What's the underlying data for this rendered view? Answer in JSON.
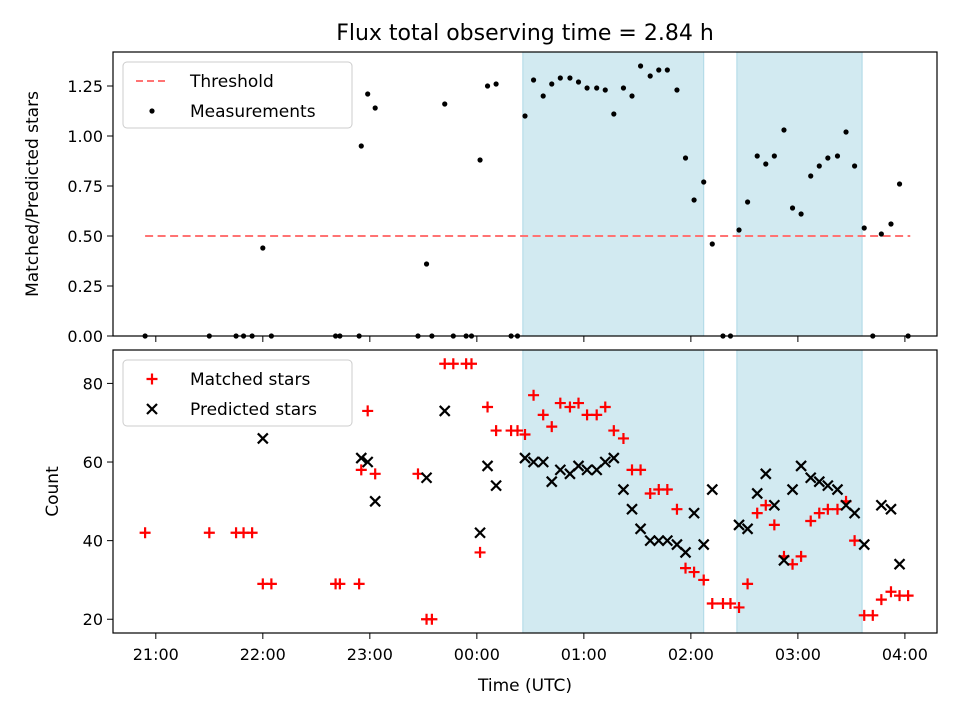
{
  "chart_data": {
    "title": "Flux total observing time = 2.84 h",
    "shared_x": {
      "label": "Time (UTC)",
      "unit": "hours since midnight UTC (previous day negative)",
      "range": [
        -3.4,
        4.3
      ],
      "ticks": [
        -3,
        -2,
        -1,
        0,
        1,
        2,
        3,
        4
      ],
      "tick_labels": [
        "21:00",
        "22:00",
        "23:00",
        "00:00",
        "01:00",
        "02:00",
        "03:00",
        "04:00"
      ]
    },
    "shaded_intervals": [
      [
        0.43,
        2.12
      ],
      [
        2.43,
        3.6
      ]
    ],
    "shade_color": "#add8e6",
    "panels": [
      {
        "type": "scatter",
        "ylabel": "Matched/Predicted stars",
        "ylim": [
          0,
          1.42
        ],
        "yticks": [
          0,
          0.25,
          0.5,
          0.75,
          1.0,
          1.25
        ],
        "ytick_labels": [
          "0.00",
          "0.25",
          "0.50",
          "0.75",
          "1.00",
          "1.25"
        ],
        "legend": {
          "position": "upper-left",
          "entries": [
            {
              "label": "Threshold",
              "marker": "dashed-line",
              "color": "#ff7373"
            },
            {
              "label": "Measurements",
              "marker": "dot",
              "color": "#000000"
            }
          ]
        },
        "threshold": {
          "name": "Threshold",
          "y": 0.5,
          "x_range": [
            -3.1,
            4.05
          ],
          "color": "#ff7373"
        },
        "series": [
          {
            "name": "Measurements",
            "marker": "dot",
            "color": "#000000",
            "points": [
              [
                -3.1,
                0.0
              ],
              [
                -2.5,
                0.0
              ],
              [
                -2.25,
                0.0
              ],
              [
                -2.18,
                0.0
              ],
              [
                -2.1,
                0.0
              ],
              [
                -2.0,
                0.44
              ],
              [
                -1.92,
                0.0
              ],
              [
                -1.32,
                0.0
              ],
              [
                -1.28,
                0.0
              ],
              [
                -1.1,
                0.0
              ],
              [
                -1.08,
                0.95
              ],
              [
                -1.02,
                1.21
              ],
              [
                -0.95,
                1.14
              ],
              [
                -0.55,
                0.0
              ],
              [
                -0.47,
                0.36
              ],
              [
                -0.42,
                0.0
              ],
              [
                -0.3,
                1.16
              ],
              [
                -0.22,
                0.0
              ],
              [
                -0.1,
                0.0
              ],
              [
                -0.05,
                0.0
              ],
              [
                0.03,
                0.88
              ],
              [
                0.1,
                1.25
              ],
              [
                0.18,
                1.26
              ],
              [
                0.32,
                0.0
              ],
              [
                0.38,
                0.0
              ],
              [
                0.45,
                1.1
              ],
              [
                0.53,
                1.28
              ],
              [
                0.62,
                1.2
              ],
              [
                0.7,
                1.26
              ],
              [
                0.78,
                1.29
              ],
              [
                0.87,
                1.29
              ],
              [
                0.95,
                1.27
              ],
              [
                1.03,
                1.24
              ],
              [
                1.12,
                1.24
              ],
              [
                1.2,
                1.23
              ],
              [
                1.28,
                1.11
              ],
              [
                1.37,
                1.24
              ],
              [
                1.45,
                1.2
              ],
              [
                1.53,
                1.35
              ],
              [
                1.62,
                1.3
              ],
              [
                1.7,
                1.33
              ],
              [
                1.78,
                1.33
              ],
              [
                1.87,
                1.23
              ],
              [
                1.95,
                0.89
              ],
              [
                2.03,
                0.68
              ],
              [
                2.12,
                0.77
              ],
              [
                2.2,
                0.46
              ],
              [
                2.3,
                0.0
              ],
              [
                2.37,
                0.0
              ],
              [
                2.45,
                0.53
              ],
              [
                2.53,
                0.67
              ],
              [
                2.62,
                0.9
              ],
              [
                2.7,
                0.86
              ],
              [
                2.78,
                0.9
              ],
              [
                2.87,
                1.03
              ],
              [
                2.95,
                0.64
              ],
              [
                3.03,
                0.61
              ],
              [
                3.12,
                0.8
              ],
              [
                3.2,
                0.85
              ],
              [
                3.28,
                0.89
              ],
              [
                3.37,
                0.9
              ],
              [
                3.45,
                1.02
              ],
              [
                3.53,
                0.85
              ],
              [
                3.62,
                0.54
              ],
              [
                3.7,
                0.0
              ],
              [
                3.78,
                0.51
              ],
              [
                3.87,
                0.56
              ],
              [
                3.95,
                0.76
              ],
              [
                4.03,
                0.0
              ]
            ]
          }
        ]
      },
      {
        "type": "scatter",
        "ylabel": "Count",
        "ylim": [
          16.5,
          88.5
        ],
        "yticks": [
          20,
          40,
          60,
          80
        ],
        "ytick_labels": [
          "20",
          "40",
          "60",
          "80"
        ],
        "legend": {
          "position": "upper-left",
          "entries": [
            {
              "label": "Matched stars",
              "marker": "plus",
              "color": "#ff0000"
            },
            {
              "label": "Predicted stars",
              "marker": "x",
              "color": "#000000"
            }
          ]
        },
        "series": [
          {
            "name": "Matched stars",
            "marker": "plus",
            "color": "#ff0000",
            "points": [
              [
                -3.1,
                42
              ],
              [
                -2.5,
                42
              ],
              [
                -2.25,
                42
              ],
              [
                -2.18,
                42
              ],
              [
                -2.1,
                42
              ],
              [
                -2.0,
                29
              ],
              [
                -1.92,
                29
              ],
              [
                -1.32,
                29
              ],
              [
                -1.28,
                29
              ],
              [
                -1.1,
                29
              ],
              [
                -1.08,
                58
              ],
              [
                -1.02,
                73
              ],
              [
                -0.95,
                57
              ],
              [
                -0.55,
                57
              ],
              [
                -0.47,
                20
              ],
              [
                -0.42,
                20
              ],
              [
                -0.3,
                85
              ],
              [
                -0.22,
                85
              ],
              [
                -0.1,
                85
              ],
              [
                -0.05,
                85
              ],
              [
                0.03,
                37
              ],
              [
                0.1,
                74
              ],
              [
                0.18,
                68
              ],
              [
                0.32,
                68
              ],
              [
                0.38,
                68
              ],
              [
                0.45,
                67
              ],
              [
                0.53,
                77
              ],
              [
                0.62,
                72
              ],
              [
                0.7,
                69
              ],
              [
                0.78,
                75
              ],
              [
                0.87,
                74
              ],
              [
                0.95,
                75
              ],
              [
                1.03,
                72
              ],
              [
                1.12,
                72
              ],
              [
                1.2,
                74
              ],
              [
                1.28,
                68
              ],
              [
                1.37,
                66
              ],
              [
                1.45,
                58
              ],
              [
                1.53,
                58
              ],
              [
                1.62,
                52
              ],
              [
                1.7,
                53
              ],
              [
                1.78,
                53
              ],
              [
                1.87,
                48
              ],
              [
                1.95,
                33
              ],
              [
                2.03,
                32
              ],
              [
                2.12,
                30
              ],
              [
                2.2,
                24
              ],
              [
                2.3,
                24
              ],
              [
                2.37,
                24
              ],
              [
                2.45,
                23
              ],
              [
                2.53,
                29
              ],
              [
                2.62,
                47
              ],
              [
                2.7,
                49
              ],
              [
                2.78,
                44
              ],
              [
                2.87,
                36
              ],
              [
                2.95,
                34
              ],
              [
                3.03,
                36
              ],
              [
                3.12,
                45
              ],
              [
                3.2,
                47
              ],
              [
                3.28,
                48
              ],
              [
                3.37,
                48
              ],
              [
                3.45,
                50
              ],
              [
                3.53,
                40
              ],
              [
                3.62,
                21
              ],
              [
                3.7,
                21
              ],
              [
                3.78,
                25
              ],
              [
                3.87,
                27
              ],
              [
                3.95,
                26
              ],
              [
                4.03,
                26
              ]
            ]
          },
          {
            "name": "Predicted stars",
            "marker": "x",
            "color": "#000000",
            "points": [
              [
                -2.0,
                66
              ],
              [
                -1.08,
                61
              ],
              [
                -1.02,
                60
              ],
              [
                -0.95,
                50
              ],
              [
                -0.47,
                56
              ],
              [
                -0.3,
                73
              ],
              [
                0.03,
                42
              ],
              [
                0.1,
                59
              ],
              [
                0.18,
                54
              ],
              [
                0.45,
                61
              ],
              [
                0.53,
                60
              ],
              [
                0.62,
                60
              ],
              [
                0.7,
                55
              ],
              [
                0.78,
                58
              ],
              [
                0.87,
                57
              ],
              [
                0.95,
                59
              ],
              [
                1.03,
                58
              ],
              [
                1.12,
                58
              ],
              [
                1.2,
                60
              ],
              [
                1.28,
                61
              ],
              [
                1.37,
                53
              ],
              [
                1.45,
                48
              ],
              [
                1.53,
                43
              ],
              [
                1.62,
                40
              ],
              [
                1.7,
                40
              ],
              [
                1.78,
                40
              ],
              [
                1.87,
                39
              ],
              [
                1.95,
                37
              ],
              [
                2.03,
                47
              ],
              [
                2.12,
                39
              ],
              [
                2.2,
                53
              ],
              [
                2.45,
                44
              ],
              [
                2.53,
                43
              ],
              [
                2.62,
                52
              ],
              [
                2.7,
                57
              ],
              [
                2.78,
                49
              ],
              [
                2.87,
                35
              ],
              [
                2.95,
                53
              ],
              [
                3.03,
                59
              ],
              [
                3.12,
                56
              ],
              [
                3.2,
                55
              ],
              [
                3.28,
                54
              ],
              [
                3.37,
                53
              ],
              [
                3.45,
                49
              ],
              [
                3.53,
                47
              ],
              [
                3.62,
                39
              ],
              [
                3.78,
                49
              ],
              [
                3.87,
                48
              ],
              [
                3.95,
                34
              ]
            ]
          }
        ]
      }
    ]
  }
}
